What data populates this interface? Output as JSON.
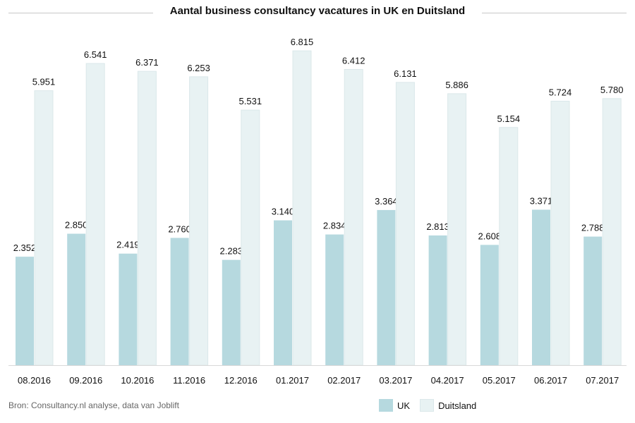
{
  "chart_data": {
    "type": "bar",
    "title": "Aantal business consultancy vacatures in UK en Duitsland",
    "categories": [
      "08.2016",
      "09.2016",
      "10.2016",
      "11.2016",
      "12.2016",
      "01.2017",
      "02.2017",
      "03.2017",
      "04.2017",
      "05.2017",
      "06.2017",
      "07.2017"
    ],
    "series": [
      {
        "name": "UK",
        "color": "#b6d9df",
        "values": [
          2352,
          2850,
          2419,
          2760,
          2283,
          3140,
          2834,
          3364,
          2813,
          2608,
          3371,
          2788
        ],
        "labels": [
          "2.352",
          "2.850",
          "2.419",
          "2.760",
          "2.283",
          "3.140",
          "2.834",
          "3.364",
          "2.813",
          "2.608",
          "3.371",
          "2.788"
        ]
      },
      {
        "name": "Duitsland",
        "color": "#e8f2f3",
        "values": [
          5951,
          6541,
          6371,
          6253,
          5531,
          6815,
          6412,
          6131,
          5886,
          5154,
          5724,
          5780
        ],
        "labels": [
          "5.951",
          "6.541",
          "6.371",
          "6.253",
          "5.531",
          "6.815",
          "6.412",
          "6.131",
          "5.886",
          "5.154",
          "5.724",
          "5.780"
        ]
      }
    ],
    "ylim": [
      0,
      7000
    ],
    "grid": false,
    "legend_position": "bottom-right",
    "source": "Bron: Consultancy.nl analyse, data van Joblift"
  }
}
